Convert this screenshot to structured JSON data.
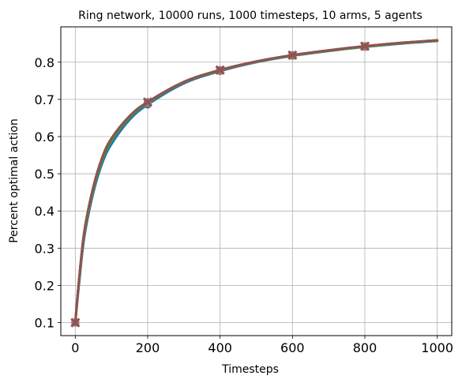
{
  "chart_data": {
    "type": "line",
    "title": "Ring network, 10000 runs, 1000 timesteps, 10 arms, 5 agents",
    "xlabel": "Timesteps",
    "ylabel": "Percent optimal action",
    "xlim": [
      -40,
      1040
    ],
    "ylim": [
      0.065,
      0.895
    ],
    "xticks": [
      0,
      200,
      400,
      600,
      800,
      1000
    ],
    "yticks": [
      0.1,
      0.2,
      0.3,
      0.4,
      0.5,
      0.6,
      0.7,
      0.8
    ],
    "xtick_labels": [
      "0",
      "200",
      "400",
      "600",
      "800",
      "1000"
    ],
    "ytick_labels": [
      "0.1",
      "0.2",
      "0.3",
      "0.4",
      "0.5",
      "0.6",
      "0.7",
      "0.8"
    ],
    "grid": true,
    "legend": null,
    "series": [
      {
        "color": "#1f77b4",
        "marker": "circle",
        "x": [
          0,
          10,
          25,
          50,
          75,
          100,
          150,
          200,
          300,
          400,
          500,
          600,
          700,
          800,
          900,
          1000
        ],
        "y": [
          0.1,
          0.2,
          0.33,
          0.45,
          0.53,
          0.58,
          0.645,
          0.686,
          0.743,
          0.776,
          0.8,
          0.817,
          0.83,
          0.841,
          0.85,
          0.857
        ]
      },
      {
        "color": "#ff7f0e",
        "marker": "square",
        "x": [
          0,
          10,
          25,
          50,
          75,
          100,
          150,
          200,
          300,
          400,
          500,
          600,
          700,
          800,
          900,
          1000
        ],
        "y": [
          0.1,
          0.21,
          0.34,
          0.46,
          0.54,
          0.59,
          0.652,
          0.691,
          0.746,
          0.778,
          0.801,
          0.818,
          0.831,
          0.842,
          0.851,
          0.858
        ]
      },
      {
        "color": "#2ca02c",
        "marker": "triangle",
        "x": [
          0,
          10,
          25,
          50,
          75,
          100,
          150,
          200,
          300,
          400,
          500,
          600,
          700,
          800,
          900,
          1000
        ],
        "y": [
          0.1,
          0.21,
          0.34,
          0.46,
          0.54,
          0.59,
          0.652,
          0.691,
          0.746,
          0.778,
          0.801,
          0.818,
          0.831,
          0.842,
          0.851,
          0.858
        ]
      },
      {
        "color": "#d62728",
        "marker": "diamond",
        "x": [
          0,
          10,
          25,
          50,
          75,
          100,
          150,
          200,
          300,
          400,
          500,
          600,
          700,
          800,
          900,
          1000
        ],
        "y": [
          0.1,
          0.21,
          0.345,
          0.465,
          0.545,
          0.595,
          0.655,
          0.693,
          0.747,
          0.779,
          0.802,
          0.819,
          0.832,
          0.843,
          0.852,
          0.859
        ]
      },
      {
        "color": "#9467bd",
        "marker": "plus",
        "x": [
          0,
          10,
          25,
          50,
          75,
          100,
          150,
          200,
          300,
          400,
          500,
          600,
          700,
          800,
          900,
          1000
        ],
        "y": [
          0.1,
          0.21,
          0.345,
          0.465,
          0.545,
          0.595,
          0.655,
          0.693,
          0.747,
          0.779,
          0.802,
          0.819,
          0.832,
          0.843,
          0.852,
          0.859
        ]
      },
      {
        "color": "#8c564b",
        "marker": "x",
        "x": [
          0,
          10,
          25,
          50,
          75,
          100,
          150,
          200,
          300,
          400,
          500,
          600,
          700,
          800,
          900,
          1000
        ],
        "y": [
          0.1,
          0.21,
          0.345,
          0.465,
          0.545,
          0.595,
          0.655,
          0.693,
          0.747,
          0.779,
          0.802,
          0.819,
          0.832,
          0.843,
          0.852,
          0.859
        ]
      }
    ],
    "marker_x": [
      0,
      200,
      400,
      600,
      800
    ]
  }
}
